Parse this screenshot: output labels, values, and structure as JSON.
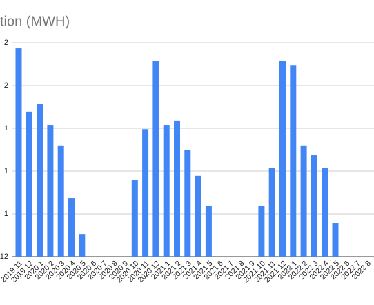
{
  "chart_data": {
    "type": "bar",
    "title": "tion (MWH)",
    "categories": [
      "2019 11",
      "2019 12",
      "2020 1",
      "2020 2",
      "2020 3",
      "2020 4",
      "2020 5",
      "2020 6",
      "2020 7",
      "2020 8",
      "2020 9",
      "2020 10",
      "2020 11",
      "2020 12",
      "2021 1",
      "2021 2",
      "2021 3",
      "2021 4",
      "2021 5",
      "2021 6",
      "2021 7",
      "2021 8",
      "2021 9",
      "2021 10",
      "2021 11",
      "2021 12",
      "2022 1",
      "2022 2",
      "2022 3",
      "2022 4",
      "2022 5",
      "2022 6",
      "2022 7",
      "2022 8"
    ],
    "values": [
      4.87,
      3.39,
      3.58,
      3.08,
      2.6,
      1.37,
      0.53,
      null,
      null,
      null,
      null,
      1.79,
      2.98,
      4.58,
      3.08,
      3.18,
      2.5,
      1.89,
      1.19,
      null,
      null,
      null,
      null,
      1.19,
      2.08,
      4.58,
      4.48,
      2.6,
      2.37,
      2.08,
      0.79,
      null,
      null,
      null
    ],
    "color": "#4285f4",
    "ylim": [
      0,
      5
    ],
    "yticks": [
      {
        "value": 0,
        "label": "12"
      },
      {
        "value": 1,
        "label": "1"
      },
      {
        "value": 2,
        "label": "1"
      },
      {
        "value": 3,
        "label": "1"
      },
      {
        "value": 4,
        "label": "2"
      },
      {
        "value": 5,
        "label": "2"
      }
    ],
    "grid": true
  }
}
